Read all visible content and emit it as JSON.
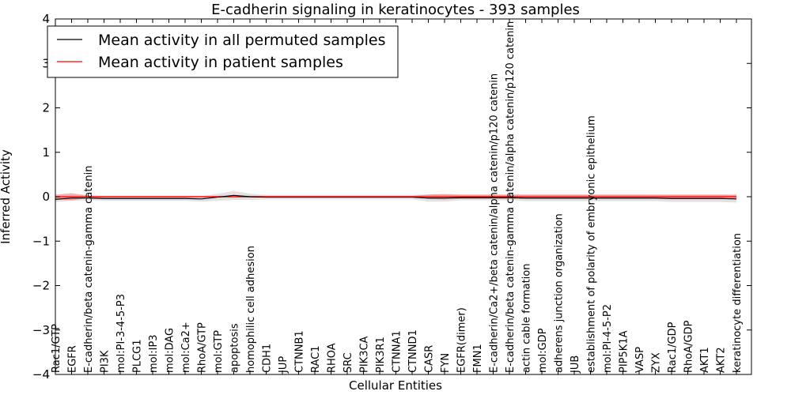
{
  "chart_data": {
    "type": "line",
    "title": "E-cadherin signaling in keratinocytes - 393 samples",
    "xlabel": "Cellular Entities",
    "ylabel": "Inferred Activity",
    "ylim": [
      -4,
      4
    ],
    "yticks": [
      "4",
      "3",
      "2",
      "1",
      "0",
      "−1",
      "−2",
      "−3",
      "−4"
    ],
    "grid": false,
    "legend_position": "top-left",
    "categories": [
      "Rac1/GTP",
      "EGFR",
      "E-cadherin/beta catenin-gamma catenin",
      "PI3K",
      "mol:PI-3-4-5-P3",
      "PLCG1",
      "mol:IP3",
      "mol:DAG",
      "mol:Ca2+",
      "RhoA/GTP",
      "mol:GTP",
      "apoptosis",
      "homophilic cell adhesion",
      "CDH1",
      "JUP",
      "CTNNB1",
      "RAC1",
      "RHOA",
      "SRC",
      "PIK3CA",
      "PIK3R1",
      "CTNNA1",
      "CTNND1",
      "CASR",
      "FYN",
      "EGFR(dimer)",
      "FMN1",
      "E-cadherin/Ca2+/beta catenin/alpha catenin/p120 catenin",
      "E-cadherin/beta catenin-gamma catenin/alpha catenin/p120 catenin",
      "actin cable formation",
      "mol:GDP",
      "adherens junction organization",
      "JUB",
      "establishment of polarity of embryonic epithelium",
      "mol:PI-4-5-P2",
      "PIP5K1A",
      "VASP",
      "ZYX",
      "Rac1/GDP",
      "RhoA/GDP",
      "AKT1",
      "AKT2",
      "keratinocyte differentiation"
    ],
    "series": [
      {
        "name": "Mean activity in all permuted samples",
        "color": "#000000",
        "values": [
          -0.06,
          -0.03,
          -0.03,
          -0.04,
          -0.04,
          -0.04,
          -0.04,
          -0.04,
          -0.04,
          -0.05,
          -0.01,
          0.03,
          0.0,
          -0.01,
          -0.01,
          -0.01,
          -0.01,
          -0.01,
          -0.01,
          -0.01,
          -0.01,
          -0.01,
          -0.01,
          -0.03,
          -0.03,
          -0.02,
          -0.02,
          -0.02,
          -0.02,
          -0.03,
          -0.03,
          -0.03,
          -0.03,
          -0.03,
          -0.03,
          -0.03,
          -0.03,
          -0.03,
          -0.04,
          -0.04,
          -0.04,
          -0.04,
          -0.05
        ],
        "band": [
          0.06,
          0.06,
          0.05,
          0.05,
          0.05,
          0.05,
          0.05,
          0.05,
          0.05,
          0.06,
          0.08,
          0.1,
          0.07,
          0.05,
          0.05,
          0.05,
          0.05,
          0.05,
          0.05,
          0.05,
          0.05,
          0.05,
          0.05,
          0.08,
          0.08,
          0.06,
          0.06,
          0.06,
          0.06,
          0.07,
          0.07,
          0.07,
          0.07,
          0.07,
          0.07,
          0.07,
          0.07,
          0.07,
          0.08,
          0.08,
          0.08,
          0.08,
          0.08
        ]
      },
      {
        "name": "Mean activity in patient samples",
        "color": "#ff0000",
        "values": [
          0.0,
          0.0,
          0.0,
          0.0,
          0.0,
          0.0,
          0.0,
          0.0,
          0.0,
          0.0,
          0.0,
          0.0,
          0.0,
          0.0,
          0.0,
          0.0,
          0.0,
          0.0,
          0.0,
          0.0,
          0.0,
          0.0,
          0.0,
          0.0,
          0.0,
          0.0,
          0.0,
          0.0,
          0.0,
          0.0,
          0.0,
          0.0,
          0.0,
          0.0,
          0.0,
          0.0,
          0.0,
          0.0,
          0.0,
          0.0,
          0.0,
          0.0,
          0.0
        ],
        "band": [
          0.05,
          0.08,
          0.03,
          0.02,
          0.02,
          0.02,
          0.02,
          0.02,
          0.02,
          0.02,
          0.02,
          0.02,
          0.02,
          0.02,
          0.02,
          0.02,
          0.02,
          0.02,
          0.02,
          0.02,
          0.02,
          0.02,
          0.02,
          0.05,
          0.06,
          0.05,
          0.05,
          0.05,
          0.05,
          0.05,
          0.05,
          0.05,
          0.05,
          0.05,
          0.05,
          0.05,
          0.05,
          0.05,
          0.05,
          0.05,
          0.05,
          0.05,
          0.05
        ]
      }
    ]
  }
}
